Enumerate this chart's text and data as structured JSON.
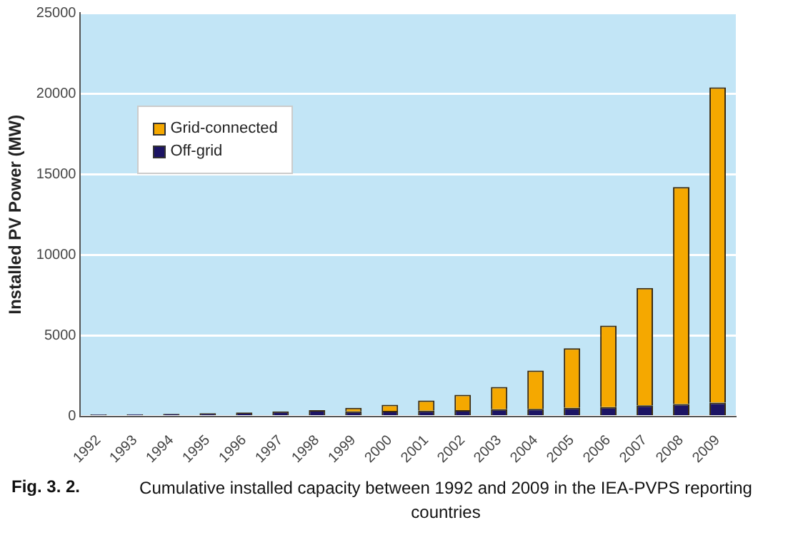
{
  "chart_data": {
    "type": "bar",
    "stacked": true,
    "ylabel": "Installed PV Power (MW)",
    "title": "Fig. 3. 2.",
    "subtitle": "Cumulative installed capacity between 1992 and 2009 in the IEA-PVPS reporting countries",
    "categories": [
      "1992",
      "1993",
      "1994",
      "1995",
      "1996",
      "1997",
      "1998",
      "1999",
      "2000",
      "2001",
      "2002",
      "2003",
      "2004",
      "2005",
      "2006",
      "2007",
      "2008",
      "2009"
    ],
    "series": [
      {
        "name": "Off-grid",
        "color": "#1c1464",
        "values": [
          110,
          130,
          150,
          190,
          240,
          300,
          380,
          300,
          330,
          350,
          380,
          430,
          460,
          520,
          570,
          680,
          760,
          840
        ]
      },
      {
        "name": "Grid-connected",
        "color": "#f5a800",
        "values": [
          0,
          0,
          0,
          0,
          0,
          0,
          0,
          220,
          380,
          630,
          950,
          1390,
          2370,
          3690,
          5050,
          7270,
          13440,
          19540
        ]
      }
    ],
    "ylim": [
      0,
      25000
    ],
    "yticks": [
      0,
      5000,
      10000,
      15000,
      20000,
      25000
    ],
    "grid": "y",
    "legend": "top left"
  }
}
